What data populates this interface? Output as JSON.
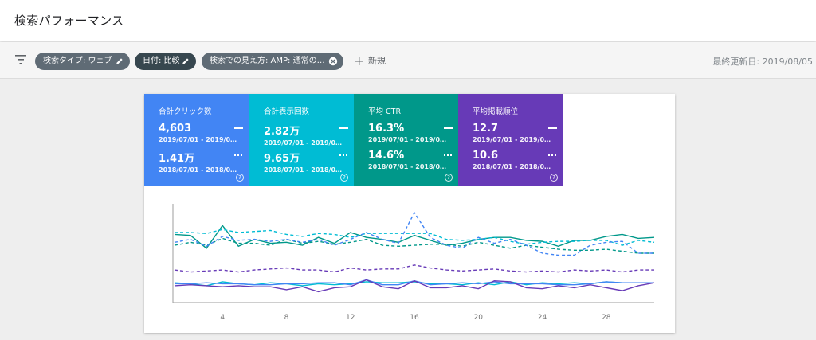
{
  "header": {
    "title": "検索パフォーマンス"
  },
  "filters": {
    "chips": [
      {
        "label": "検索タイプ: ウェブ",
        "icon": "edit-icon"
      },
      {
        "label": "日付: 比較",
        "icon": "edit-icon"
      },
      {
        "label": "検索での見え方: AMP: 通常の…",
        "icon": "close-icon"
      }
    ],
    "new_label": "新規",
    "last_updated": "最終更新日: 2019/08/05"
  },
  "metrics": [
    {
      "label": "合計クリック数",
      "color": "#4285f4",
      "current_value": "4,603",
      "current_range": "2019/07/01 - 2019/0…",
      "previous_value": "1.41万",
      "previous_range": "2018/07/01 - 2018/0…"
    },
    {
      "label": "合計表示回数",
      "color": "#00bcd4",
      "current_value": "2.82万",
      "current_range": "2019/07/01 - 2019/0…",
      "previous_value": "9.65万",
      "previous_range": "2018/07/01 - 2018/0…"
    },
    {
      "label": "平均 CTR",
      "color": "#00988a",
      "current_value": "16.3%",
      "current_range": "2019/07/01 - 2019/0…",
      "previous_value": "14.6%",
      "previous_range": "2018/07/01 - 2018/0…"
    },
    {
      "label": "平均掲載順位",
      "color": "#673ab7",
      "current_value": "12.7",
      "current_range": "2019/07/01 - 2019/0…",
      "previous_value": "10.6",
      "previous_range": "2018/07/01 - 2018/0…"
    }
  ],
  "chart_data": {
    "type": "line",
    "x": [
      1,
      2,
      3,
      4,
      5,
      6,
      7,
      8,
      9,
      10,
      11,
      12,
      13,
      14,
      15,
      16,
      17,
      18,
      19,
      20,
      21,
      22,
      23,
      24,
      25,
      26,
      27,
      28,
      29,
      30,
      31
    ],
    "x_ticks": [
      4,
      8,
      12,
      16,
      20,
      24,
      28
    ],
    "ylim": [
      0,
      100
    ],
    "grid": false,
    "series": [
      {
        "color": "#00988a",
        "style": "solid",
        "values": [
          69,
          68,
          55,
          78,
          57,
          64,
          60,
          61,
          58,
          66,
          60,
          71,
          66,
          64,
          61,
          68,
          63,
          58,
          60,
          64,
          66,
          66,
          63,
          62,
          57,
          63,
          63,
          67,
          69,
          65,
          66
        ]
      },
      {
        "color": "#00988a",
        "style": "dashed",
        "values": [
          58,
          61,
          58,
          65,
          60,
          60,
          58,
          64,
          60,
          62,
          59,
          61,
          64,
          58,
          57,
          58,
          59,
          59,
          57,
          61,
          58,
          55,
          58,
          56,
          54,
          53,
          53,
          54,
          52,
          50,
          50
        ]
      },
      {
        "color": "#00bcd4",
        "style": "dashed",
        "values": [
          71,
          71,
          70,
          74,
          71,
          72,
          73,
          69,
          67,
          70,
          69,
          66,
          70,
          70,
          70,
          70,
          70,
          64,
          63,
          64,
          66,
          62,
          59,
          61,
          62,
          62,
          63,
          63,
          58,
          63,
          61
        ]
      },
      {
        "color": "#4285f4",
        "style": "dashed",
        "values": [
          61,
          64,
          57,
          67,
          63,
          64,
          62,
          64,
          61,
          64,
          58,
          64,
          71,
          64,
          60,
          91,
          66,
          58,
          55,
          66,
          60,
          64,
          58,
          50,
          48,
          48,
          58,
          61,
          62,
          50,
          50
        ]
      },
      {
        "color": "#673ab7",
        "style": "dashed",
        "values": [
          33,
          31,
          32,
          33,
          31,
          33,
          34,
          35,
          33,
          33,
          31,
          35,
          33,
          34,
          34,
          38,
          35,
          33,
          32,
          33,
          34,
          32,
          31,
          32,
          31,
          33,
          32,
          33,
          31,
          33,
          33
        ]
      },
      {
        "color": "#00bcd4",
        "style": "solid",
        "values": [
          20,
          19,
          17,
          21,
          19,
          18,
          20,
          19,
          17,
          19,
          18,
          19,
          21,
          20,
          20,
          21,
          19,
          19,
          18,
          20,
          18,
          21,
          18,
          20,
          19,
          20,
          19,
          21,
          20,
          20,
          20
        ]
      },
      {
        "color": "#4285f4",
        "style": "solid",
        "values": [
          19,
          19,
          20,
          19,
          19,
          18,
          18,
          19,
          19,
          20,
          20,
          18,
          23,
          18,
          18,
          22,
          18,
          19,
          20,
          19,
          21,
          19,
          19,
          19,
          18,
          18,
          19,
          21,
          20,
          20,
          20
        ]
      },
      {
        "color": "#673ab7",
        "style": "solid",
        "values": [
          17,
          18,
          17,
          16,
          17,
          16,
          16,
          13,
          16,
          11,
          15,
          16,
          23,
          16,
          14,
          22,
          15,
          15,
          17,
          14,
          22,
          21,
          15,
          14,
          17,
          15,
          18,
          15,
          12,
          17,
          20
        ]
      }
    ]
  }
}
